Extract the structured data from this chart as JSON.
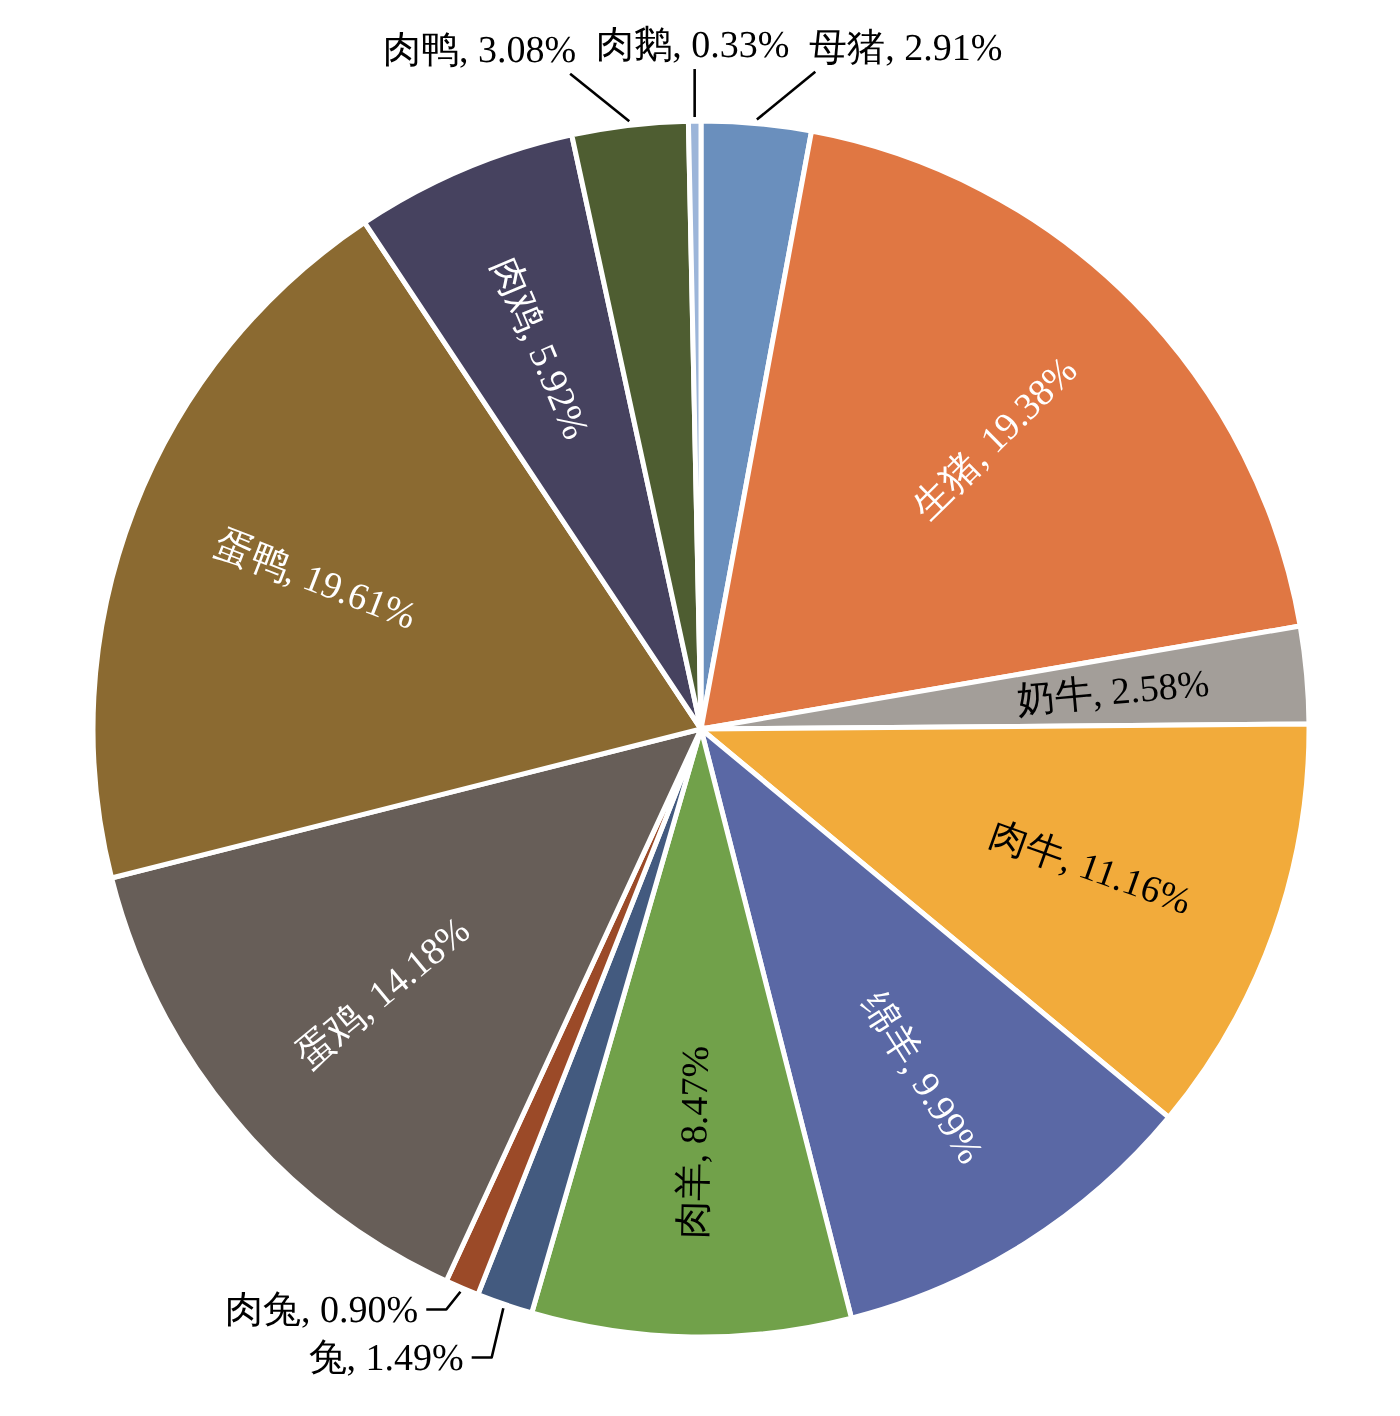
{
  "chart_data": {
    "type": "pie",
    "categories": [
      "母猪",
      "生猪",
      "奶牛",
      "肉牛",
      "绵羊",
      "肉羊",
      "兔",
      "肉兔",
      "蛋鸡",
      "蛋鸭",
      "肉鸡",
      "肉鸭",
      "肉鹅"
    ],
    "values": [
      2.91,
      19.38,
      2.58,
      11.16,
      9.99,
      8.47,
      1.49,
      0.9,
      14.18,
      19.61,
      5.92,
      3.08,
      0.33
    ],
    "value_labels": [
      "2.91%",
      "19.38%",
      "2.58%",
      "11.16%",
      "9.99%",
      "8.47%",
      "1.49%",
      "0.90%",
      "14.18%",
      "19.61%",
      "5.92%",
      "3.08%",
      "0.33%"
    ],
    "colors": [
      "#6a8fbd",
      "#e07743",
      "#a39e99",
      "#f2ab3b",
      "#5a68a5",
      "#71a14a",
      "#435a7f",
      "#9b4a28",
      "#675e58",
      "#8b6a31",
      "#46425f",
      "#4e5d31",
      "#9cb5d9"
    ]
  }
}
